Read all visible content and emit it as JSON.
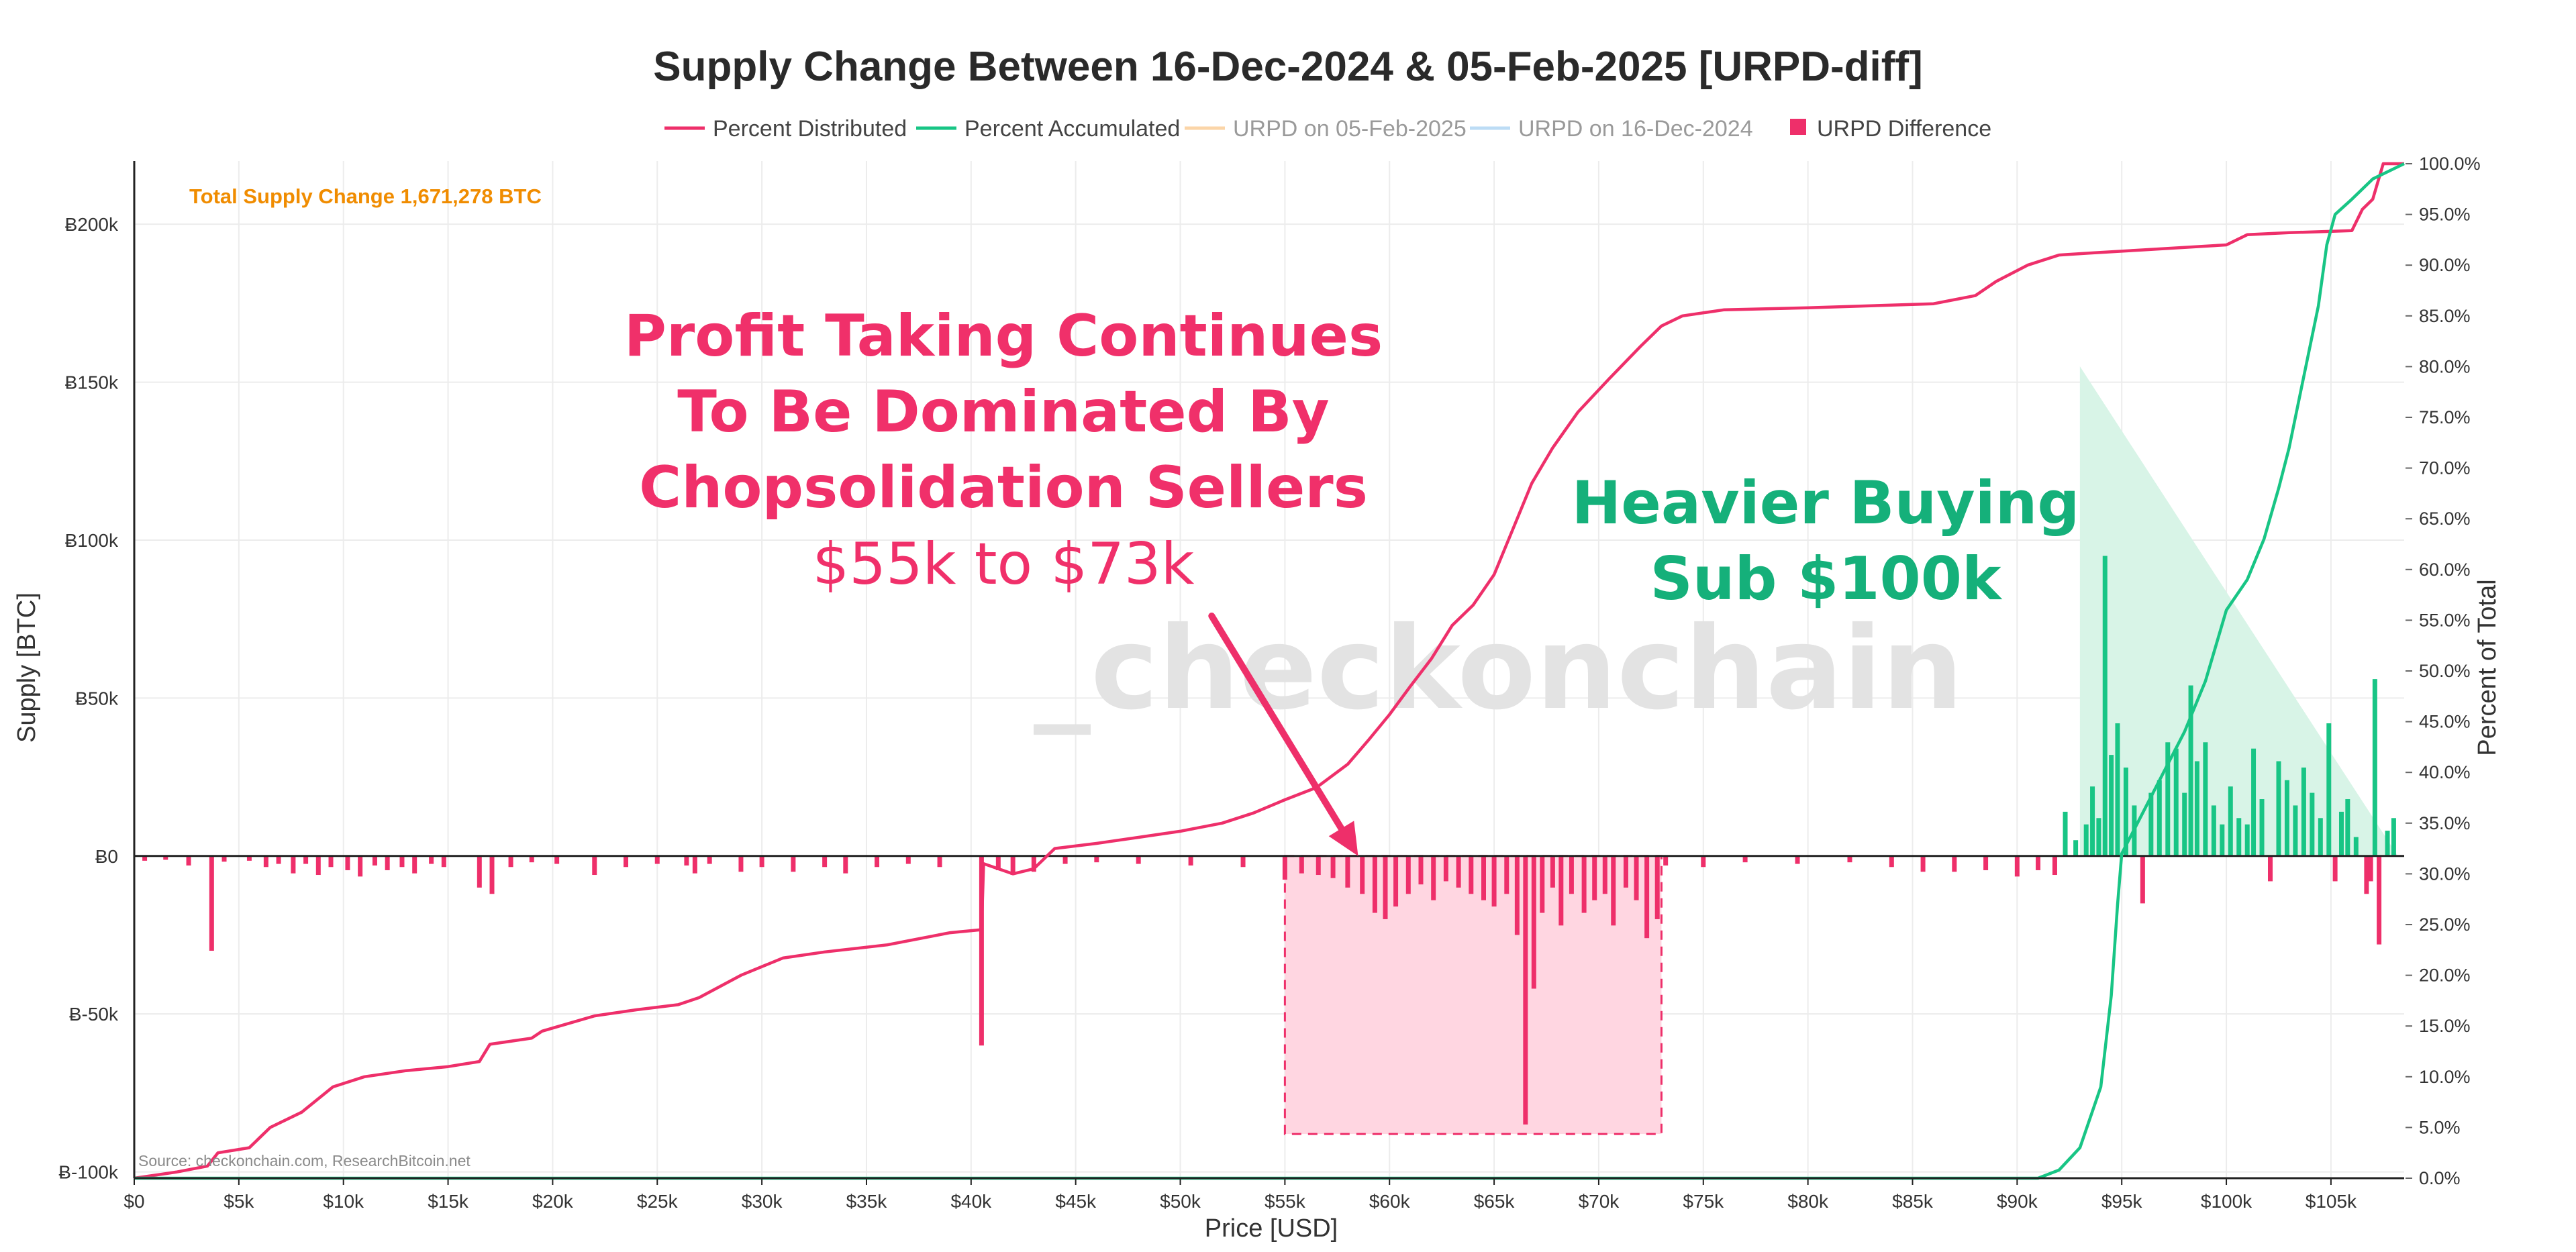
{
  "colors": {
    "distributed": "#ee2f6a",
    "accumulated": "#18c585",
    "urpd_new": "#fbd5a8",
    "urpd_old": "#bcdcf5",
    "diff_neg": "#ee2f6a",
    "diff_pos": "#18c585",
    "note": "#f08c00",
    "grid": "#ececec"
  },
  "chart_data": {
    "type": "bar",
    "title": "Supply Change Between 16-Dec-2024 & 05-Feb-2025 [URPD-diff]",
    "xlabel": "Price [USD]",
    "ylabel": "Supply [BTC]",
    "y2label": "Percent of Total",
    "xlim": [
      0,
      108500
    ],
    "ylim": [
      -102000,
      220000
    ],
    "y2lim": [
      0,
      100
    ],
    "x_ticks": [
      {
        "v": 0,
        "t": "$0"
      },
      {
        "v": 5000,
        "t": "$5k"
      },
      {
        "v": 10000,
        "t": "$10k"
      },
      {
        "v": 15000,
        "t": "$15k"
      },
      {
        "v": 20000,
        "t": "$20k"
      },
      {
        "v": 25000,
        "t": "$25k"
      },
      {
        "v": 30000,
        "t": "$30k"
      },
      {
        "v": 35000,
        "t": "$35k"
      },
      {
        "v": 40000,
        "t": "$40k"
      },
      {
        "v": 45000,
        "t": "$45k"
      },
      {
        "v": 50000,
        "t": "$50k"
      },
      {
        "v": 55000,
        "t": "$55k"
      },
      {
        "v": 60000,
        "t": "$60k"
      },
      {
        "v": 65000,
        "t": "$65k"
      },
      {
        "v": 70000,
        "t": "$70k"
      },
      {
        "v": 75000,
        "t": "$75k"
      },
      {
        "v": 80000,
        "t": "$80k"
      },
      {
        "v": 85000,
        "t": "$85k"
      },
      {
        "v": 90000,
        "t": "$90k"
      },
      {
        "v": 95000,
        "t": "$95k"
      },
      {
        "v": 100000,
        "t": "$100k"
      },
      {
        "v": 105000,
        "t": "$105k"
      }
    ],
    "y_ticks": [
      {
        "v": 200000,
        "t": "Ƀ200k"
      },
      {
        "v": 150000,
        "t": "Ƀ150k"
      },
      {
        "v": 100000,
        "t": "Ƀ100k"
      },
      {
        "v": 50000,
        "t": "Ƀ50k"
      },
      {
        "v": 0,
        "t": "Ƀ0"
      },
      {
        "v": -50000,
        "t": "Ƀ-50k"
      },
      {
        "v": -100000,
        "t": "Ƀ-100k"
      }
    ],
    "y2_ticks": [
      {
        "v": 100,
        "t": "100.0%"
      },
      {
        "v": 95,
        "t": "95.0%"
      },
      {
        "v": 90,
        "t": "90.0%"
      },
      {
        "v": 85,
        "t": "85.0%"
      },
      {
        "v": 80,
        "t": "80.0%"
      },
      {
        "v": 75,
        "t": "75.0%"
      },
      {
        "v": 70,
        "t": "70.0%"
      },
      {
        "v": 65,
        "t": "65.0%"
      },
      {
        "v": 60,
        "t": "60.0%"
      },
      {
        "v": 55,
        "t": "55.0%"
      },
      {
        "v": 50,
        "t": "50.0%"
      },
      {
        "v": 45,
        "t": "45.0%"
      },
      {
        "v": 40,
        "t": "40.0%"
      },
      {
        "v": 35,
        "t": "35.0%"
      },
      {
        "v": 30,
        "t": "30.0%"
      },
      {
        "v": 25,
        "t": "25.0%"
      },
      {
        "v": 20,
        "t": "20.0%"
      },
      {
        "v": 15,
        "t": "15.0%"
      },
      {
        "v": 10,
        "t": "10.0%"
      },
      {
        "v": 5,
        "t": "5.0%"
      },
      {
        "v": 0,
        "t": "0.0%"
      }
    ],
    "legend": [
      {
        "name": "Percent Distributed",
        "kind": "line",
        "color": "#ee2f6a",
        "muted": false
      },
      {
        "name": "Percent Accumulated",
        "kind": "line",
        "color": "#18c585",
        "muted": false
      },
      {
        "name": "URPD on 05-Feb-2025",
        "kind": "line",
        "color": "#fbd5a8",
        "muted": true
      },
      {
        "name": "URPD on 16-Dec-2024",
        "kind": "line",
        "color": "#bcdcf5",
        "muted": true
      },
      {
        "name": "URPD Difference",
        "kind": "box",
        "color": "#ee2f6a",
        "muted": false
      }
    ],
    "grid": true,
    "series": [
      {
        "name": "Percent Distributed",
        "axis": "right",
        "points": [
          [
            0,
            0
          ],
          [
            2000,
            0.6
          ],
          [
            3500,
            1.2
          ],
          [
            4000,
            2.5
          ],
          [
            5500,
            3
          ],
          [
            6500,
            5
          ],
          [
            8000,
            6.5
          ],
          [
            9500,
            9
          ],
          [
            11000,
            10
          ],
          [
            13000,
            10.6
          ],
          [
            15000,
            11
          ],
          [
            16500,
            11.5
          ],
          [
            17000,
            13.2
          ],
          [
            19000,
            13.8
          ],
          [
            19500,
            14.5
          ],
          [
            22000,
            16
          ],
          [
            24000,
            16.6
          ],
          [
            26000,
            17.1
          ],
          [
            27000,
            17.8
          ],
          [
            29000,
            20
          ],
          [
            31000,
            21.7
          ],
          [
            33000,
            22.3
          ],
          [
            36000,
            23
          ],
          [
            39000,
            24.2
          ],
          [
            40500,
            24.5
          ],
          [
            40600,
            31
          ],
          [
            42000,
            30
          ],
          [
            43000,
            30.5
          ],
          [
            44000,
            32.5
          ],
          [
            46000,
            33
          ],
          [
            48000,
            33.6
          ],
          [
            50000,
            34.2
          ],
          [
            52000,
            35
          ],
          [
            53500,
            36
          ],
          [
            55000,
            37.3
          ],
          [
            56500,
            38.5
          ],
          [
            58000,
            40.8
          ],
          [
            59000,
            43.2
          ],
          [
            60000,
            45.7
          ],
          [
            61000,
            48.5
          ],
          [
            62000,
            51.2
          ],
          [
            63000,
            54.5
          ],
          [
            64000,
            56.5
          ],
          [
            65000,
            59.5
          ],
          [
            66000,
            64.5
          ],
          [
            66800,
            68.5
          ],
          [
            67800,
            72
          ],
          [
            69000,
            75.5
          ],
          [
            70500,
            78.8
          ],
          [
            72000,
            82
          ],
          [
            73000,
            84
          ],
          [
            74000,
            85
          ],
          [
            76000,
            85.6
          ],
          [
            80000,
            85.8
          ],
          [
            86000,
            86.2
          ],
          [
            88000,
            87
          ],
          [
            89000,
            88.4
          ],
          [
            90500,
            90
          ],
          [
            92000,
            91
          ],
          [
            93500,
            91.2
          ],
          [
            96000,
            91.5
          ],
          [
            100000,
            92
          ],
          [
            101000,
            93
          ],
          [
            103000,
            93.2
          ],
          [
            106000,
            93.4
          ],
          [
            106500,
            95.5
          ],
          [
            107000,
            96.5
          ],
          [
            107500,
            100
          ],
          [
            108500,
            100
          ]
        ]
      },
      {
        "name": "Percent Accumulated",
        "axis": "right",
        "points": [
          [
            0,
            0
          ],
          [
            91000,
            0
          ],
          [
            92000,
            0.8
          ],
          [
            93000,
            3
          ],
          [
            94000,
            9
          ],
          [
            94500,
            18
          ],
          [
            94800,
            27
          ],
          [
            95000,
            32
          ],
          [
            96000,
            36
          ],
          [
            97000,
            40
          ],
          [
            98000,
            44
          ],
          [
            99000,
            49
          ],
          [
            100000,
            56
          ],
          [
            101000,
            59
          ],
          [
            101800,
            63
          ],
          [
            102500,
            68
          ],
          [
            103000,
            72
          ],
          [
            103500,
            77
          ],
          [
            104000,
            82
          ],
          [
            104400,
            86
          ],
          [
            104800,
            92
          ],
          [
            105200,
            95
          ],
          [
            106000,
            96.5
          ],
          [
            107000,
            98.5
          ],
          [
            108500,
            100
          ]
        ]
      }
    ],
    "urpd_difference": [
      [
        500,
        -1500
      ],
      [
        1500,
        -1200
      ],
      [
        2600,
        -3000
      ],
      [
        3700,
        -30000
      ],
      [
        4300,
        -1800
      ],
      [
        5500,
        -1500
      ],
      [
        6300,
        -3500
      ],
      [
        6900,
        -2500
      ],
      [
        7600,
        -5500
      ],
      [
        8200,
        -2500
      ],
      [
        8800,
        -6000
      ],
      [
        9400,
        -3500
      ],
      [
        10200,
        -4500
      ],
      [
        10800,
        -6500
      ],
      [
        11500,
        -3000
      ],
      [
        12100,
        -4500
      ],
      [
        12800,
        -3500
      ],
      [
        13400,
        -5500
      ],
      [
        14200,
        -2500
      ],
      [
        14800,
        -3500
      ],
      [
        16500,
        -10000
      ],
      [
        17100,
        -12000
      ],
      [
        18000,
        -3500
      ],
      [
        19000,
        -2000
      ],
      [
        20200,
        -2500
      ],
      [
        22000,
        -6000
      ],
      [
        23500,
        -3500
      ],
      [
        25000,
        -2500
      ],
      [
        26400,
        -3000
      ],
      [
        26800,
        -5500
      ],
      [
        27500,
        -2500
      ],
      [
        29000,
        -5000
      ],
      [
        30000,
        -3500
      ],
      [
        31500,
        -5000
      ],
      [
        33000,
        -3500
      ],
      [
        34000,
        -5500
      ],
      [
        35500,
        -3500
      ],
      [
        37000,
        -2500
      ],
      [
        38500,
        -3500
      ],
      [
        40500,
        -60000
      ],
      [
        41300,
        -4500
      ],
      [
        42000,
        -6000
      ],
      [
        43000,
        -5000
      ],
      [
        44500,
        -2500
      ],
      [
        46000,
        -2000
      ],
      [
        48000,
        -2500
      ],
      [
        50500,
        -3000
      ],
      [
        53000,
        -3500
      ],
      [
        55000,
        -7500
      ],
      [
        55800,
        -5500
      ],
      [
        56600,
        -6000
      ],
      [
        57300,
        -7000
      ],
      [
        58000,
        -10000
      ],
      [
        58700,
        -12000
      ],
      [
        59300,
        -18000
      ],
      [
        59800,
        -20000
      ],
      [
        60300,
        -16000
      ],
      [
        60900,
        -12000
      ],
      [
        61500,
        -9000
      ],
      [
        62100,
        -14000
      ],
      [
        62700,
        -8000
      ],
      [
        63300,
        -10000
      ],
      [
        63900,
        -12000
      ],
      [
        64500,
        -14000
      ],
      [
        65000,
        -16000
      ],
      [
        65600,
        -12000
      ],
      [
        66100,
        -25000
      ],
      [
        66500,
        -85000
      ],
      [
        66900,
        -42000
      ],
      [
        67300,
        -18000
      ],
      [
        67800,
        -10000
      ],
      [
        68200,
        -22000
      ],
      [
        68700,
        -12000
      ],
      [
        69300,
        -18000
      ],
      [
        69800,
        -14000
      ],
      [
        70300,
        -12000
      ],
      [
        70700,
        -22000
      ],
      [
        71300,
        -10000
      ],
      [
        71800,
        -14000
      ],
      [
        72300,
        -26000
      ],
      [
        72800,
        -20000
      ],
      [
        73200,
        -3000
      ],
      [
        75000,
        -3500
      ],
      [
        77000,
        -2000
      ],
      [
        79500,
        -2500
      ],
      [
        82000,
        -2000
      ],
      [
        84000,
        -3500
      ],
      [
        85500,
        -5000
      ],
      [
        87000,
        -5000
      ],
      [
        88500,
        -4500
      ],
      [
        90000,
        -6500
      ],
      [
        91000,
        -4500
      ],
      [
        91800,
        -6000
      ],
      [
        92300,
        14000
      ],
      [
        92800,
        5000
      ],
      [
        93300,
        10000
      ],
      [
        93600,
        22000
      ],
      [
        93900,
        12000
      ],
      [
        94200,
        95000
      ],
      [
        94500,
        32000
      ],
      [
        94800,
        42000
      ],
      [
        95200,
        28000
      ],
      [
        95600,
        16000
      ],
      [
        96000,
        -15000
      ],
      [
        96400,
        20000
      ],
      [
        96800,
        24000
      ],
      [
        97200,
        36000
      ],
      [
        97600,
        34000
      ],
      [
        98000,
        20000
      ],
      [
        98300,
        54000
      ],
      [
        98600,
        30000
      ],
      [
        99000,
        36000
      ],
      [
        99400,
        16000
      ],
      [
        99800,
        10000
      ],
      [
        100200,
        22000
      ],
      [
        100600,
        12000
      ],
      [
        101000,
        10000
      ],
      [
        101300,
        34000
      ],
      [
        101700,
        18000
      ],
      [
        102100,
        -8000
      ],
      [
        102500,
        30000
      ],
      [
        102900,
        24000
      ],
      [
        103300,
        16000
      ],
      [
        103700,
        28000
      ],
      [
        104100,
        20000
      ],
      [
        104500,
        12000
      ],
      [
        104900,
        42000
      ],
      [
        105200,
        -8000
      ],
      [
        105500,
        14000
      ],
      [
        105800,
        18000
      ],
      [
        106200,
        6000
      ],
      [
        106700,
        -12000
      ],
      [
        106900,
        -8000
      ],
      [
        107100,
        56000
      ],
      [
        107300,
        -28000
      ],
      [
        107700,
        8000
      ],
      [
        108000,
        12000
      ]
    ],
    "shaded_regions": [
      {
        "kind": "rect",
        "x0": 55000,
        "x1": 73000,
        "y0": 0,
        "y1": -88000,
        "color": "#ffd6e1"
      },
      {
        "kind": "triangle",
        "points": [
          [
            93000,
            0
          ],
          [
            93000,
            155000
          ],
          [
            108200,
            0
          ]
        ],
        "color": "#d8f4e7"
      }
    ],
    "annotations": {
      "total_supply_change": "Total Supply Change 1,671,278 BTC",
      "profit_line1": "Profit Taking  Continues",
      "profit_line2": "To Be Dominated By",
      "profit_line3": "Chopsolidation Sellers",
      "profit_line4": "$55k to $73k",
      "buying_line1": "Heavier Buying",
      "buying_line2": "Sub $100k",
      "arrow_from_x": 51500,
      "arrow_from_y": 76000,
      "arrow_to_x": 58500,
      "arrow_to_y": 0
    },
    "watermark": "_checkonchain",
    "source": "Source: checkonchain.com, ResearchBitcoin.net"
  }
}
